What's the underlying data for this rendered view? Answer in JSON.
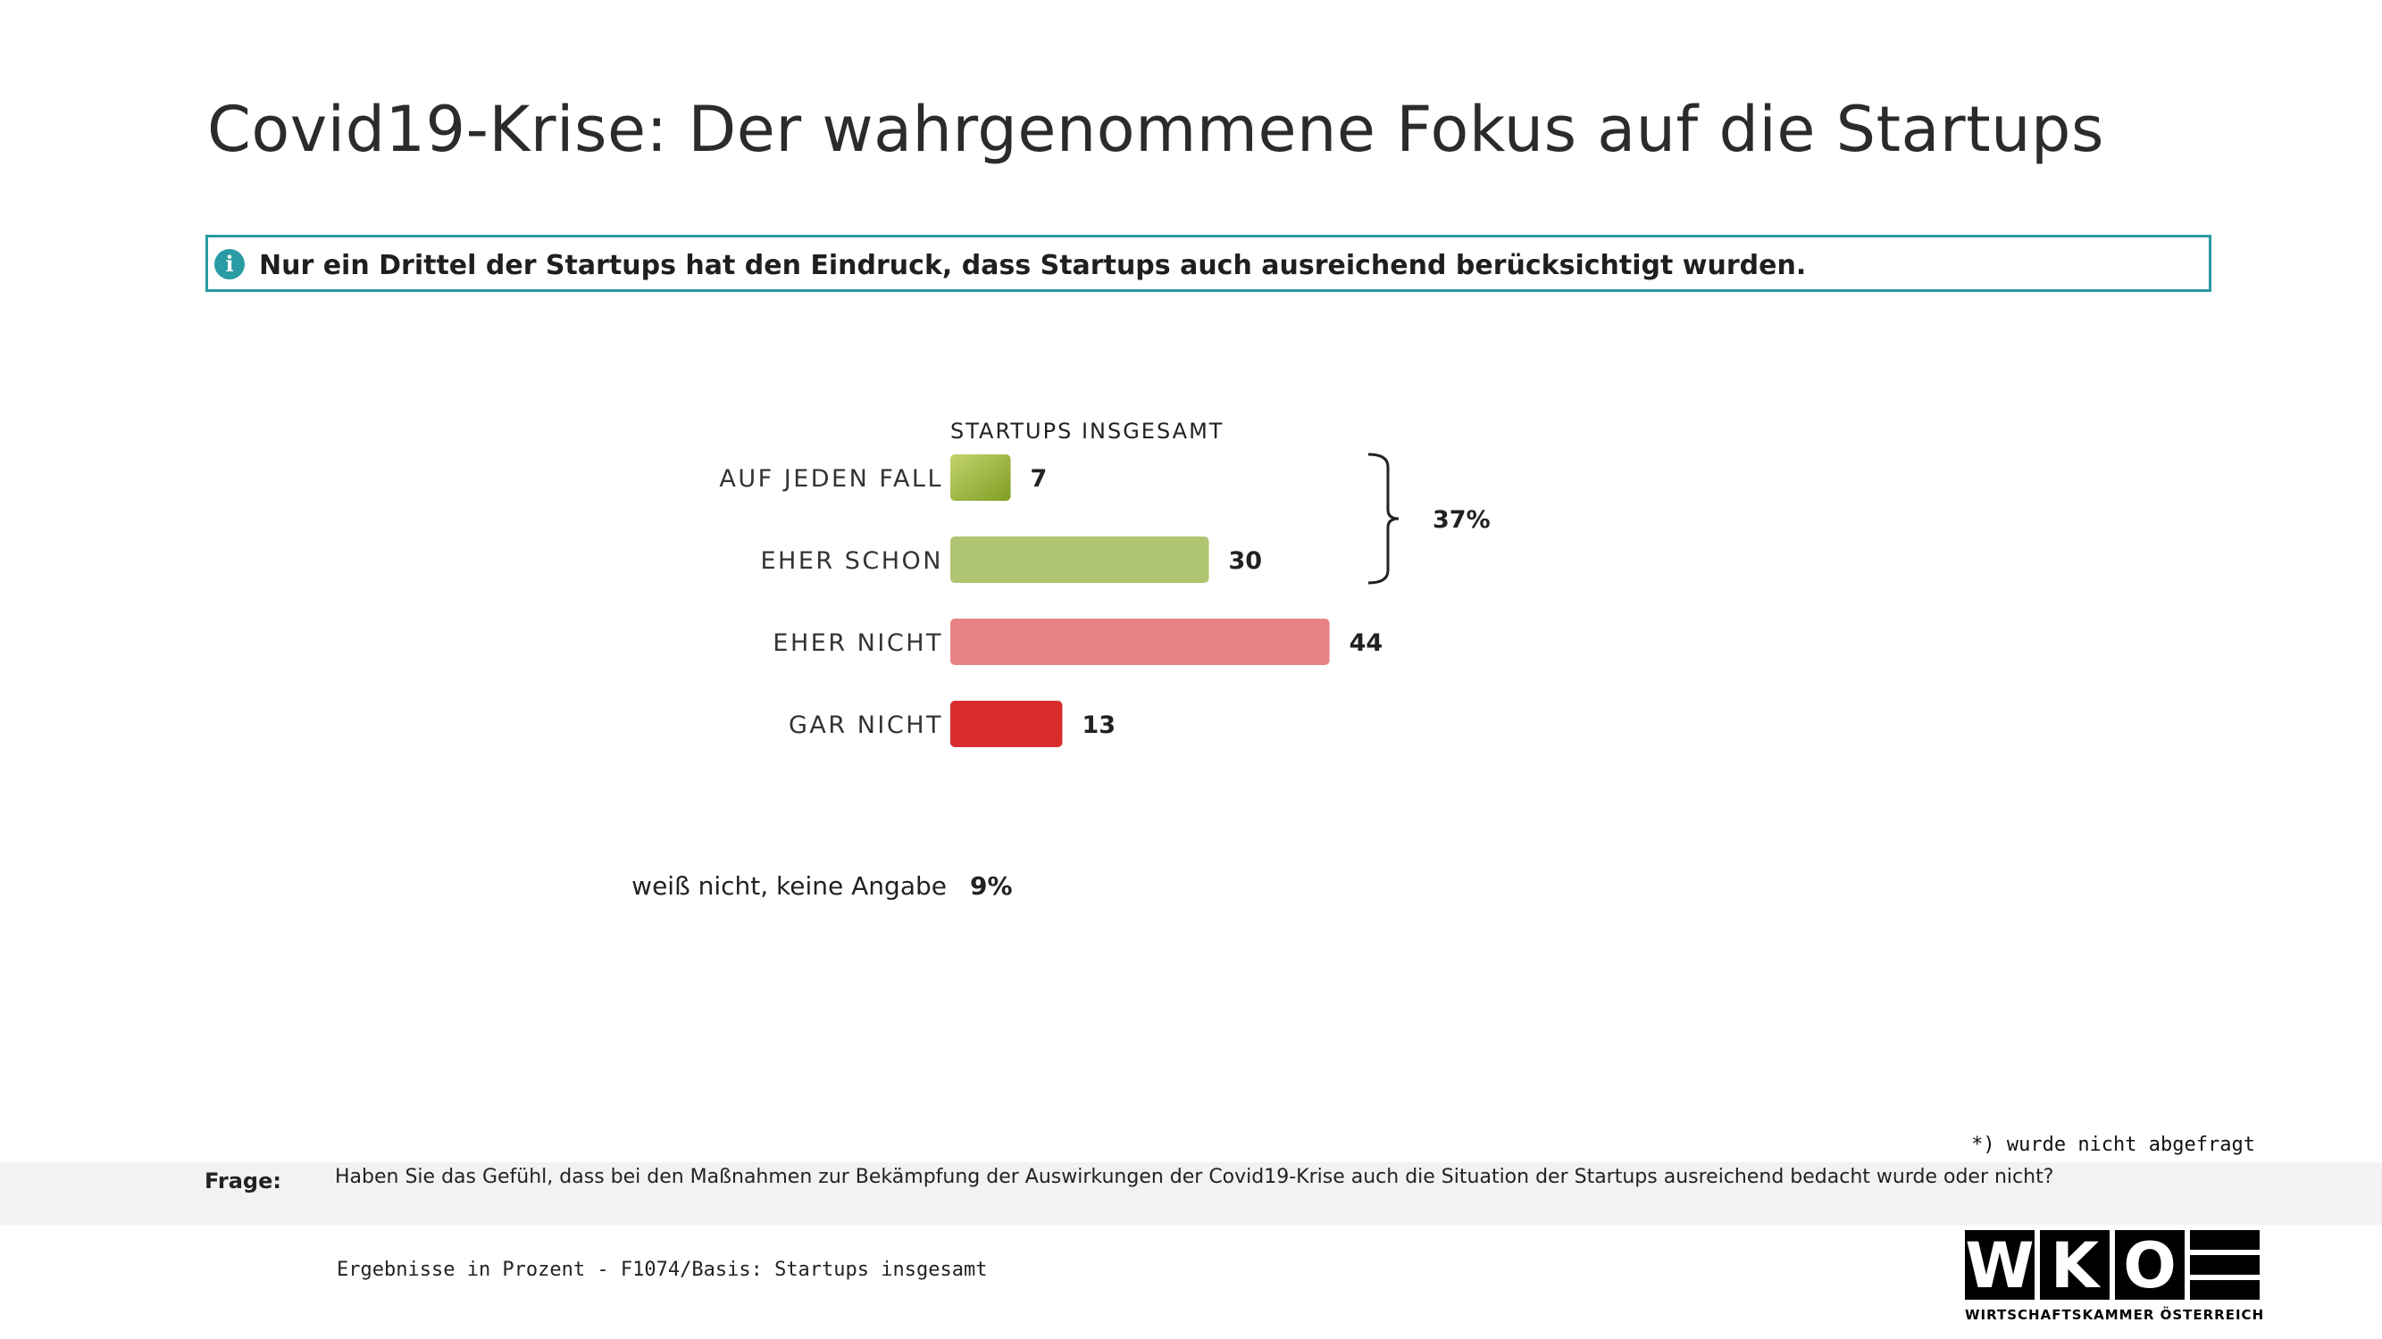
{
  "title": "Covid19-Krise: Der wahrgenommene Fokus auf die Startups",
  "info": {
    "icon": "info-icon",
    "text": "Nur ein Drittel der Startups hat den Eindruck, dass Startups auch ausreichend berücksichtigt wurden."
  },
  "chart_data": {
    "type": "bar",
    "orientation": "horizontal",
    "title": "STARTUPS INSGESAMT",
    "categories": [
      "AUF JEDEN FALL",
      "EHER SCHON",
      "EHER NICHT",
      "GAR NICHT"
    ],
    "values": [
      7,
      30,
      44,
      13
    ],
    "value_labels": [
      "7",
      "30",
      "44",
      "13"
    ],
    "colors": [
      "#9ab83a",
      "#b0c572",
      "#e88383",
      "#d92d2d"
    ],
    "bracket": {
      "from": 0,
      "to": 1,
      "label": "37%"
    }
  },
  "dont_know": {
    "label": "weiß nicht, keine Angabe",
    "value": "9%"
  },
  "footnote": "*) wurde nicht abgefragt",
  "question": {
    "label": "Frage:",
    "text": "Haben Sie das Gefühl, dass bei den Maßnahmen zur Bekämpfung der Auswirkungen der Covid19-Krise auch die Situation der Startups ausreichend bedacht wurde oder nicht?"
  },
  "basis": "Ergebnisse in Prozent - F1074/Basis:  Startups insgesamt",
  "logo": {
    "letters": [
      "W",
      "K",
      "O"
    ],
    "text": "WIRTSCHAFTSKAMMER ÖSTERREICH"
  }
}
